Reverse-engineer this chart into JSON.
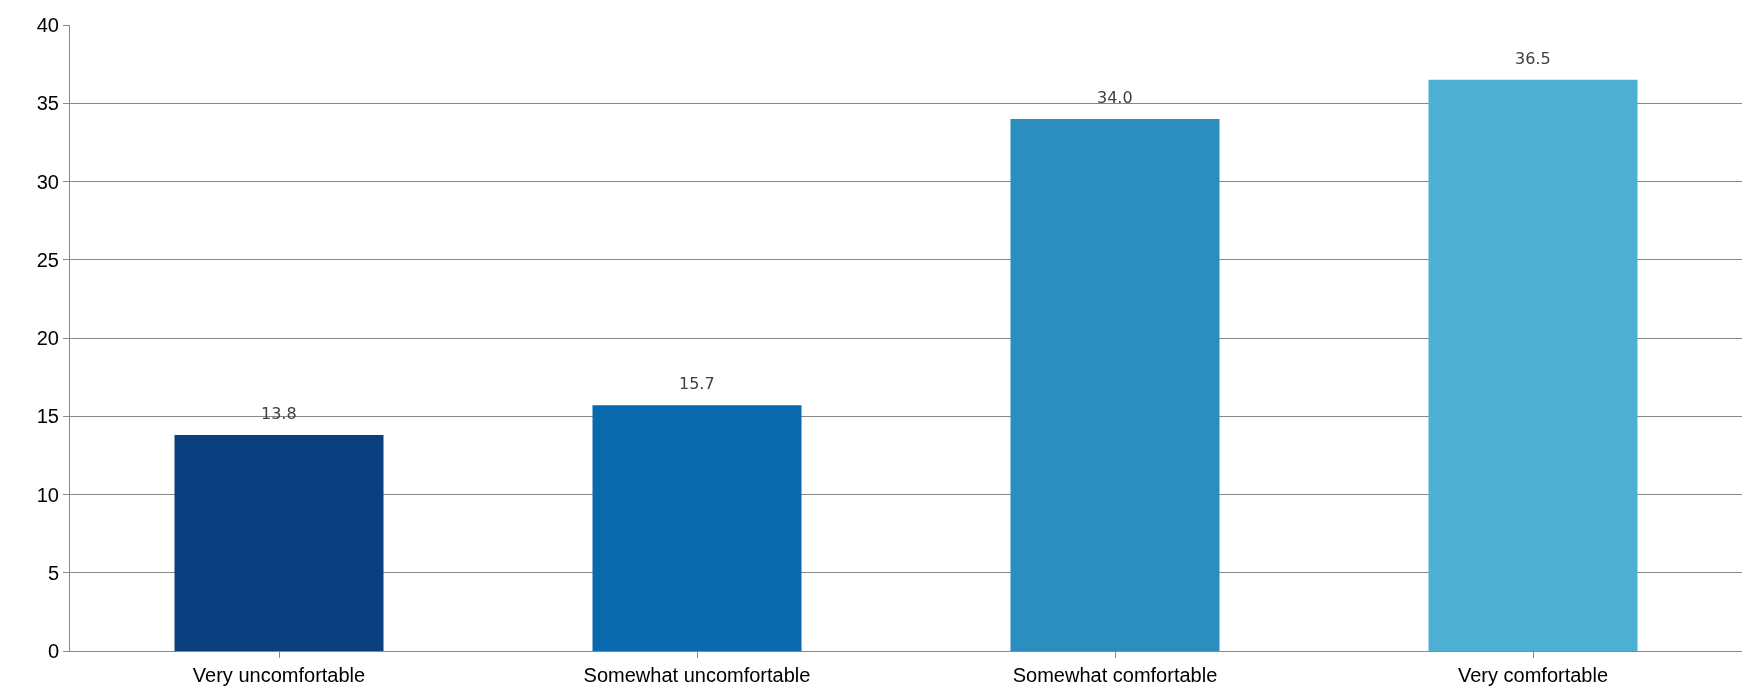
{
  "chart_data": {
    "type": "bar",
    "categories": [
      "Very uncomfortable",
      "Somewhat uncomfortable",
      "Somewhat comfortable",
      "Very comfortable"
    ],
    "values": [
      13.8,
      15.7,
      34.0,
      36.5
    ],
    "colors": [
      "#0b3f7f",
      "#0a69ad",
      "#2b8ebf",
      "#4db0d3"
    ],
    "value_labels": [
      "13.8",
      "15.7",
      "34.0",
      "36.5"
    ],
    "ylim": [
      0,
      40
    ],
    "yticks": [
      0,
      5,
      10,
      15,
      20,
      25,
      30,
      35,
      40
    ],
    "grid": "y"
  }
}
